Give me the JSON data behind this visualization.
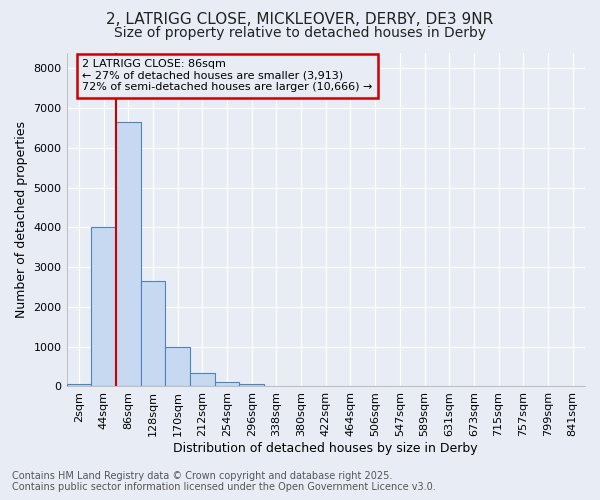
{
  "title_line1": "2, LATRIGG CLOSE, MICKLEOVER, DERBY, DE3 9NR",
  "title_line2": "Size of property relative to detached houses in Derby",
  "xlabel": "Distribution of detached houses by size in Derby",
  "ylabel": "Number of detached properties",
  "categories": [
    "2sqm",
    "44sqm",
    "86sqm",
    "128sqm",
    "170sqm",
    "212sqm",
    "254sqm",
    "296sqm",
    "338sqm",
    "380sqm",
    "422sqm",
    "464sqm",
    "506sqm",
    "547sqm",
    "589sqm",
    "631sqm",
    "673sqm",
    "715sqm",
    "757sqm",
    "799sqm",
    "841sqm"
  ],
  "values": [
    60,
    4000,
    6650,
    2650,
    1000,
    330,
    110,
    60,
    10,
    0,
    0,
    0,
    0,
    0,
    0,
    0,
    0,
    0,
    0,
    0,
    0
  ],
  "bar_fill_color": "#c6d9f0",
  "bar_edge_color": "#4f81bd",
  "highlight_bar_index": 2,
  "highlight_line_color": "#cc0000",
  "annotation_title": "2 LATRIGG CLOSE: 86sqm",
  "annotation_line1": "← 27% of detached houses are smaller (3,913)",
  "annotation_line2": "72% of semi-detached houses are larger (10,666) →",
  "annotation_box_color": "#cc0000",
  "ylim": [
    0,
    8400
  ],
  "yticks": [
    0,
    1000,
    2000,
    3000,
    4000,
    5000,
    6000,
    7000,
    8000
  ],
  "footer_line1": "Contains HM Land Registry data © Crown copyright and database right 2025.",
  "footer_line2": "Contains public sector information licensed under the Open Government Licence v3.0.",
  "background_color": "#e8edf5",
  "grid_color": "#ffffff",
  "title_fontsize": 11,
  "subtitle_fontsize": 10,
  "axis_label_fontsize": 9,
  "tick_fontsize": 8,
  "annotation_fontsize": 8,
  "footer_fontsize": 7
}
